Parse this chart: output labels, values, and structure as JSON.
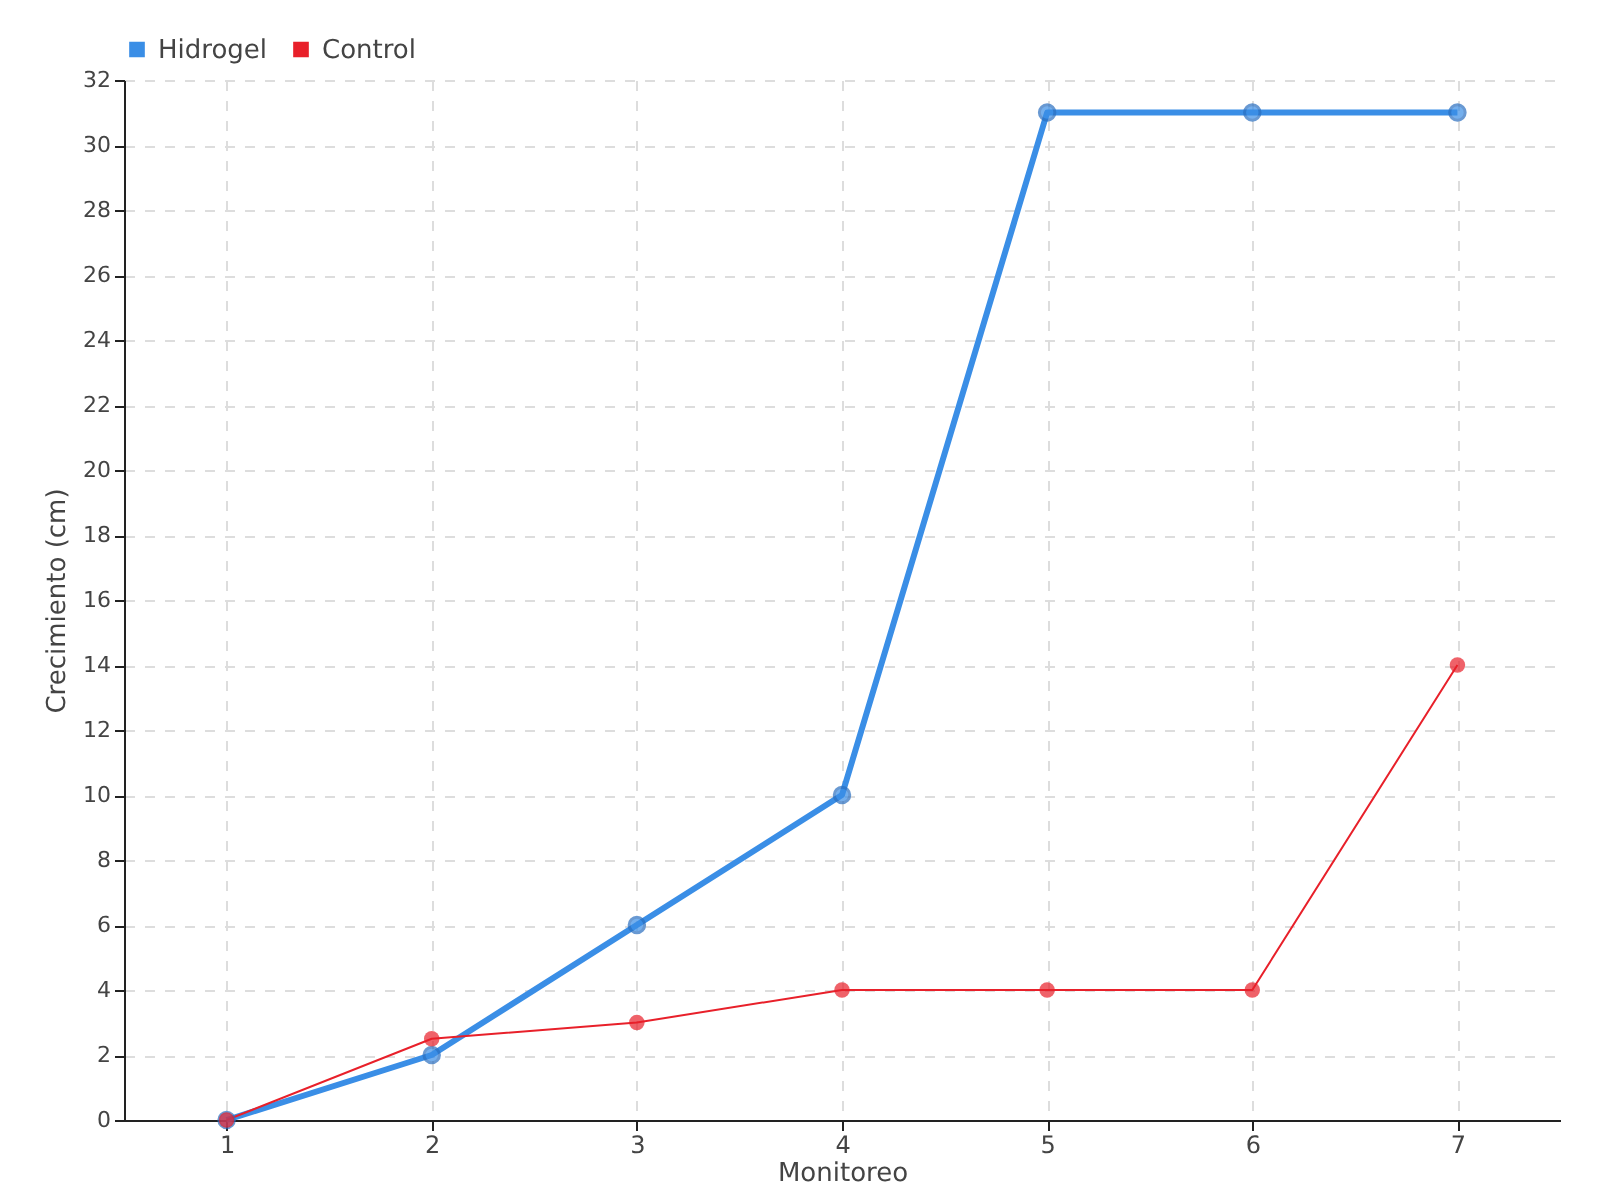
{
  "chart_data": {
    "type": "line",
    "xlabel": "Monitoreo",
    "ylabel": "Crecimiento (cm)",
    "categories": [
      "1",
      "2",
      "3",
      "4",
      "5",
      "6",
      "7"
    ],
    "series": [
      {
        "name": "Hidrogel",
        "color": "#3a8ee6",
        "values": [
          0,
          2,
          6,
          10,
          31,
          31,
          31
        ]
      },
      {
        "name": "Control",
        "color": "#e8202a",
        "values": [
          0,
          2.5,
          3,
          4,
          4,
          4,
          14
        ]
      }
    ],
    "ylim": [
      0,
      32
    ],
    "yticks": [
      0,
      2,
      4,
      6,
      8,
      10,
      12,
      14,
      16,
      18,
      20,
      22,
      24,
      26,
      28,
      30,
      32
    ],
    "grid": true,
    "legend": "top left",
    "marker": "circle",
    "line_style": "solid"
  }
}
